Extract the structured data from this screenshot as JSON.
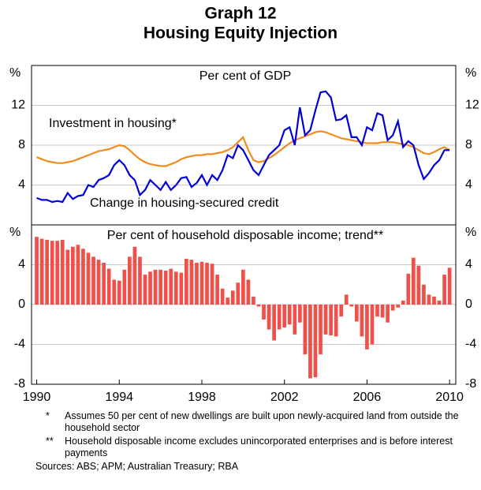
{
  "header": {
    "title": "Graph 12",
    "subtitle": "Housing Equity Injection"
  },
  "chart_data": [
    {
      "type": "line",
      "subtitle": "Per cent of GDP",
      "y_unit": "%",
      "x": [
        1990,
        1990.25,
        1990.5,
        1990.75,
        1991,
        1991.25,
        1991.5,
        1991.75,
        1992,
        1992.25,
        1992.5,
        1992.75,
        1993,
        1993.25,
        1993.5,
        1993.75,
        1994,
        1994.25,
        1994.5,
        1994.75,
        1995,
        1995.25,
        1995.5,
        1995.75,
        1996,
        1996.25,
        1996.5,
        1996.75,
        1997,
        1997.25,
        1997.5,
        1997.75,
        1998,
        1998.25,
        1998.5,
        1998.75,
        1999,
        1999.25,
        1999.5,
        1999.75,
        2000,
        2000.25,
        2000.5,
        2000.75,
        2001,
        2001.25,
        2001.5,
        2001.75,
        2002,
        2002.25,
        2002.5,
        2002.75,
        2003,
        2003.25,
        2003.5,
        2003.75,
        2004,
        2004.25,
        2004.5,
        2004.75,
        2005,
        2005.25,
        2005.5,
        2005.75,
        2006,
        2006.25,
        2006.5,
        2006.75,
        2007,
        2007.25,
        2007.5,
        2007.75,
        2008,
        2008.25,
        2008.5,
        2008.75,
        2009,
        2009.25,
        2009.5,
        2009.75,
        2010
      ],
      "series": [
        {
          "name": "Investment in housing*",
          "color": "#f08c1e",
          "values": [
            6.8,
            6.6,
            6.4,
            6.3,
            6.2,
            6.2,
            6.3,
            6.4,
            6.6,
            6.8,
            7.0,
            7.2,
            7.4,
            7.5,
            7.6,
            7.8,
            8.0,
            7.9,
            7.5,
            7.0,
            6.6,
            6.3,
            6.1,
            6.0,
            5.9,
            5.9,
            6.1,
            6.3,
            6.6,
            6.8,
            6.9,
            7.0,
            7.0,
            7.1,
            7.1,
            7.2,
            7.3,
            7.5,
            7.8,
            8.3,
            8.8,
            7.5,
            6.5,
            6.3,
            6.4,
            6.7,
            7.0,
            7.4,
            7.8,
            8.2,
            8.5,
            8.7,
            8.9,
            9.1,
            9.3,
            9.4,
            9.3,
            9.1,
            8.9,
            8.7,
            8.6,
            8.5,
            8.4,
            8.3,
            8.2,
            8.2,
            8.2,
            8.3,
            8.3,
            8.3,
            8.2,
            8.1,
            8.0,
            7.8,
            7.5,
            7.2,
            7.1,
            7.3,
            7.6,
            7.8,
            7.5
          ]
        },
        {
          "name": "Change in housing-secured credit",
          "color": "#0000d8",
          "values": [
            2.7,
            2.5,
            2.5,
            2.3,
            2.4,
            2.3,
            3.2,
            2.6,
            2.9,
            3.0,
            4.0,
            3.8,
            4.5,
            4.7,
            5.0,
            6.0,
            6.5,
            6.0,
            5.0,
            4.5,
            3.0,
            3.5,
            4.5,
            4.0,
            3.5,
            4.3,
            3.5,
            4.0,
            4.7,
            4.8,
            3.8,
            4.2,
            5.0,
            4.0,
            5.0,
            4.5,
            5.5,
            7.0,
            6.7,
            8.0,
            7.5,
            6.5,
            5.5,
            5.0,
            6.0,
            7.0,
            7.5,
            8.0,
            9.5,
            9.8,
            8.0,
            11.8,
            9.0,
            9.5,
            11.5,
            13.3,
            13.4,
            12.8,
            10.5,
            10.6,
            11.0,
            8.8,
            8.8,
            8.0,
            9.8,
            9.5,
            11.2,
            11.0,
            8.5,
            9.0,
            10.4,
            7.8,
            8.4,
            8.0,
            6.0,
            4.6,
            5.2,
            6.0,
            6.5,
            7.5,
            7.5
          ]
        }
      ],
      "xlim": [
        1989.75,
        2010.3
      ],
      "ylim": [
        0,
        16
      ],
      "yticks": [
        4,
        8,
        12
      ],
      "grid": true
    },
    {
      "type": "bar",
      "subtitle": "Per cent of household disposable income; trend**",
      "y_unit": "%",
      "color": "#f0504a",
      "x": [
        1990,
        1990.25,
        1990.5,
        1990.75,
        1991,
        1991.25,
        1991.5,
        1991.75,
        1992,
        1992.25,
        1992.5,
        1992.75,
        1993,
        1993.25,
        1993.5,
        1993.75,
        1994,
        1994.25,
        1994.5,
        1994.75,
        1995,
        1995.25,
        1995.5,
        1995.75,
        1996,
        1996.25,
        1996.5,
        1996.75,
        1997,
        1997.25,
        1997.5,
        1997.75,
        1998,
        1998.25,
        1998.5,
        1998.75,
        1999,
        1999.25,
        1999.5,
        1999.75,
        2000,
        2000.25,
        2000.5,
        2000.75,
        2001,
        2001.25,
        2001.5,
        2001.75,
        2002,
        2002.25,
        2002.5,
        2002.75,
        2003,
        2003.25,
        2003.5,
        2003.75,
        2004,
        2004.25,
        2004.5,
        2004.75,
        2005,
        2005.25,
        2005.5,
        2005.75,
        2006,
        2006.25,
        2006.5,
        2006.75,
        2007,
        2007.25,
        2007.5,
        2007.75,
        2008,
        2008.25,
        2008.5,
        2008.75,
        2009,
        2009.25,
        2009.5,
        2009.75,
        2010
      ],
      "values": [
        6.8,
        6.6,
        6.5,
        6.4,
        6.4,
        6.5,
        5.5,
        5.8,
        6.0,
        5.6,
        5.2,
        4.8,
        4.5,
        4.2,
        3.6,
        2.5,
        2.4,
        3.5,
        4.8,
        5.8,
        4.8,
        3.0,
        3.3,
        3.5,
        3.5,
        3.4,
        3.6,
        3.3,
        3.2,
        4.6,
        4.5,
        4.2,
        4.3,
        4.2,
        4.1,
        3.0,
        1.6,
        0.7,
        1.4,
        2.2,
        3.5,
        2.5,
        0.8,
        -0.2,
        -1.5,
        -2.5,
        -3.6,
        -2.5,
        -2.3,
        -2.0,
        -3.0,
        -1.8,
        -5.0,
        -7.4,
        -7.3,
        -5.0,
        -3.0,
        -3.1,
        -3.2,
        -1.2,
        1.0,
        -0.2,
        -1.7,
        -3.2,
        -4.5,
        -4.0,
        -1.2,
        -1.3,
        -1.8,
        -0.6,
        -0.3,
        0.4,
        3.1,
        4.7,
        3.9,
        2.0,
        1.0,
        0.8,
        0.4,
        3.0,
        3.7
      ],
      "xlim": [
        1989.75,
        2010.3
      ],
      "ylim": [
        -8,
        8
      ],
      "yticks": [
        -8,
        -4,
        0,
        4
      ],
      "xticks": [
        1990,
        1994,
        1998,
        2002,
        2006,
        2010
      ],
      "grid": true
    }
  ],
  "footnotes": [
    {
      "marker": "*",
      "text": "Assumes 50 per cent of new dwellings are built upon newly-acquired land from outside the household sector"
    },
    {
      "marker": "**",
      "text": "Household disposable income excludes unincorporated enterprises and is before interest payments"
    }
  ],
  "sources": "Sources: ABS; APM; Australian Treasury; RBA"
}
